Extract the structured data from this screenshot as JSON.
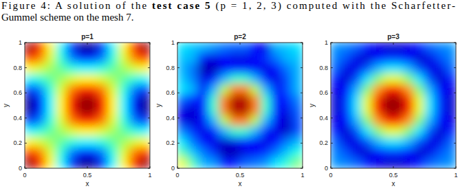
{
  "caption": {
    "line1": [
      "Figure 4:  A solution of the ",
      "test case 5",
      " (p = 1, 2, 3) computed with the Scharfetter-"
    ],
    "line2": "Gummel scheme on the mesh 7."
  },
  "chart_data": [
    {
      "type": "heatmap",
      "title": "p=1",
      "x_label": "x",
      "y_label": "y",
      "xlim": [
        0,
        1
      ],
      "ylim": [
        0,
        1
      ],
      "xticks": [
        0,
        0.5,
        1
      ],
      "yticks": [
        0,
        0.2,
        0.4,
        0.6,
        0.8,
        1
      ],
      "zlim": [
        0,
        1
      ],
      "cells": [
        [
          0.97,
          0.84,
          0.63,
          0.37,
          0.16,
          0.03,
          0.03,
          0.16,
          0.37,
          0.63,
          0.84,
          0.97
        ],
        [
          0.84,
          0.75,
          0.59,
          0.41,
          0.25,
          0.16,
          0.16,
          0.25,
          0.41,
          0.59,
          0.75,
          0.84
        ],
        [
          0.63,
          0.59,
          0.53,
          0.47,
          0.41,
          0.37,
          0.37,
          0.41,
          0.47,
          0.53,
          0.59,
          0.63
        ],
        [
          0.37,
          0.41,
          0.47,
          0.53,
          0.59,
          0.63,
          0.63,
          0.59,
          0.53,
          0.47,
          0.41,
          0.37
        ],
        [
          0.16,
          0.25,
          0.41,
          0.59,
          0.75,
          0.84,
          0.84,
          0.75,
          0.59,
          0.41,
          0.25,
          0.16
        ],
        [
          0.03,
          0.16,
          0.37,
          0.63,
          0.84,
          0.97,
          0.97,
          0.84,
          0.63,
          0.37,
          0.16,
          0.03
        ],
        [
          0.03,
          0.16,
          0.37,
          0.63,
          0.84,
          0.97,
          0.97,
          0.84,
          0.63,
          0.37,
          0.16,
          0.03
        ],
        [
          0.16,
          0.25,
          0.41,
          0.59,
          0.75,
          0.84,
          0.84,
          0.75,
          0.59,
          0.41,
          0.25,
          0.16
        ],
        [
          0.37,
          0.41,
          0.47,
          0.53,
          0.59,
          0.63,
          0.63,
          0.59,
          0.53,
          0.47,
          0.41,
          0.37
        ],
        [
          0.63,
          0.59,
          0.53,
          0.47,
          0.41,
          0.37,
          0.37,
          0.41,
          0.47,
          0.53,
          0.59,
          0.63
        ],
        [
          0.84,
          0.75,
          0.59,
          0.41,
          0.25,
          0.16,
          0.16,
          0.25,
          0.41,
          0.59,
          0.75,
          0.84
        ],
        [
          0.97,
          0.84,
          0.63,
          0.37,
          0.16,
          0.03,
          0.03,
          0.16,
          0.37,
          0.63,
          0.84,
          0.97
        ]
      ]
    },
    {
      "type": "heatmap",
      "title": "p=2",
      "x_label": "x",
      "y_label": "y",
      "xlim": [
        0,
        1
      ],
      "ylim": [
        0,
        1
      ],
      "xticks": [
        0,
        0.5,
        1
      ],
      "yticks": [
        0,
        0.2,
        0.4,
        0.6,
        0.8,
        1
      ],
      "zlim": [
        0,
        1
      ],
      "cells": [
        [
          0.35,
          0.32,
          0.3,
          0.27,
          0.24,
          0.22,
          0.22,
          0.12,
          0.1,
          0.3,
          0.32,
          0.35
        ],
        [
          0.32,
          0.3,
          0.12,
          0.1,
          0.12,
          0.1,
          0.1,
          0.12,
          0.17,
          0.24,
          0.3,
          0.32
        ],
        [
          0.3,
          0.24,
          0.05,
          0.05,
          0.12,
          0.15,
          0.15,
          0.12,
          0.1,
          0.14,
          0.24,
          0.3
        ],
        [
          0.32,
          0.25,
          0.1,
          0.15,
          0.3,
          0.42,
          0.42,
          0.3,
          0.15,
          0.1,
          0.2,
          0.3
        ],
        [
          0.35,
          0.3,
          0.12,
          0.3,
          0.55,
          0.75,
          0.75,
          0.55,
          0.3,
          0.12,
          0.2,
          0.3
        ],
        [
          0.22,
          0.15,
          0.15,
          0.42,
          0.75,
          0.95,
          0.95,
          0.75,
          0.42,
          0.15,
          0.15,
          0.25
        ],
        [
          0.1,
          0.08,
          0.15,
          0.42,
          0.75,
          0.95,
          0.95,
          0.75,
          0.42,
          0.15,
          0.1,
          0.22
        ],
        [
          0.1,
          0.08,
          0.12,
          0.3,
          0.55,
          0.75,
          0.75,
          0.55,
          0.3,
          0.12,
          0.07,
          0.2
        ],
        [
          0.25,
          0.17,
          0.1,
          0.15,
          0.3,
          0.42,
          0.42,
          0.3,
          0.15,
          0.1,
          0.07,
          0.2
        ],
        [
          0.35,
          0.24,
          0.14,
          0.1,
          0.08,
          0.1,
          0.15,
          0.12,
          0.1,
          0.14,
          0.24,
          0.3
        ],
        [
          0.45,
          0.32,
          0.24,
          0.17,
          0.05,
          0.05,
          0.1,
          0.12,
          0.17,
          0.24,
          0.32,
          0.4
        ],
        [
          0.6,
          0.45,
          0.3,
          0.27,
          0.15,
          0.15,
          0.22,
          0.24,
          0.27,
          0.35,
          0.42,
          0.5
        ]
      ]
    },
    {
      "type": "heatmap",
      "title": "p=3",
      "x_label": "x",
      "y_label": "y",
      "xlim": [
        0,
        1
      ],
      "ylim": [
        0,
        1
      ],
      "xticks": [
        0,
        0.5,
        1
      ],
      "yticks": [
        0,
        0.2,
        0.4,
        0.6,
        0.8,
        1
      ],
      "zlim": [
        0,
        1
      ],
      "cells": [
        [
          0.27,
          0.25,
          0.22,
          0.15,
          0.1,
          0.08,
          0.08,
          0.1,
          0.15,
          0.22,
          0.25,
          0.27
        ],
        [
          0.25,
          0.2,
          0.1,
          0.08,
          0.13,
          0.17,
          0.17,
          0.13,
          0.08,
          0.1,
          0.2,
          0.25
        ],
        [
          0.22,
          0.1,
          0.1,
          0.2,
          0.3,
          0.35,
          0.35,
          0.3,
          0.2,
          0.1,
          0.1,
          0.22
        ],
        [
          0.15,
          0.08,
          0.2,
          0.35,
          0.5,
          0.6,
          0.6,
          0.5,
          0.35,
          0.2,
          0.08,
          0.15
        ],
        [
          0.1,
          0.13,
          0.3,
          0.5,
          0.72,
          0.85,
          0.85,
          0.72,
          0.5,
          0.3,
          0.13,
          0.1
        ],
        [
          0.08,
          0.17,
          0.35,
          0.6,
          0.85,
          0.97,
          0.97,
          0.85,
          0.6,
          0.35,
          0.17,
          0.08
        ],
        [
          0.08,
          0.17,
          0.35,
          0.6,
          0.85,
          0.97,
          0.97,
          0.85,
          0.6,
          0.35,
          0.17,
          0.08
        ],
        [
          0.1,
          0.13,
          0.3,
          0.5,
          0.72,
          0.85,
          0.85,
          0.72,
          0.5,
          0.3,
          0.13,
          0.1
        ],
        [
          0.15,
          0.08,
          0.2,
          0.35,
          0.5,
          0.6,
          0.6,
          0.5,
          0.35,
          0.2,
          0.08,
          0.15
        ],
        [
          0.22,
          0.1,
          0.1,
          0.2,
          0.3,
          0.35,
          0.35,
          0.3,
          0.2,
          0.1,
          0.1,
          0.22
        ],
        [
          0.25,
          0.2,
          0.1,
          0.08,
          0.13,
          0.17,
          0.17,
          0.13,
          0.08,
          0.1,
          0.2,
          0.25
        ],
        [
          0.27,
          0.25,
          0.22,
          0.15,
          0.1,
          0.08,
          0.08,
          0.1,
          0.15,
          0.22,
          0.25,
          0.27
        ]
      ]
    }
  ]
}
